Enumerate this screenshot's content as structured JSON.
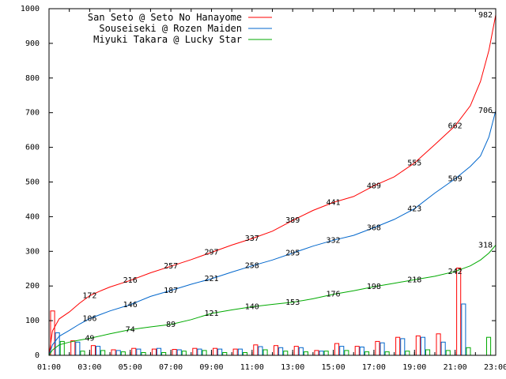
{
  "chart_data": {
    "type": "line",
    "xlim": [
      "01:00",
      "23:00"
    ],
    "ylim": [
      0,
      1000
    ],
    "x_ticks": [
      "01:00",
      "03:00",
      "05:00",
      "07:00",
      "09:00",
      "11:00",
      "13:00",
      "15:00",
      "17:00",
      "19:00",
      "21:00",
      "23:00"
    ],
    "y_ticks": [
      "0",
      "100",
      "200",
      "300",
      "400",
      "500",
      "600",
      "700",
      "800",
      "900",
      "1000"
    ],
    "grid": false,
    "legend_position": "top-left",
    "series": [
      {
        "name": "San Seto @ Seto No Hanayome",
        "color": "#ff0000",
        "points": [
          [
            "01:00",
            0
          ],
          [
            "01:10",
            70
          ],
          [
            "01:30",
            105
          ],
          [
            "02:00",
            125
          ],
          [
            "02:30",
            150
          ],
          [
            "03:00",
            172
          ],
          [
            "03:30",
            185
          ],
          [
            "04:00",
            197
          ],
          [
            "05:00",
            216
          ],
          [
            "06:00",
            238
          ],
          [
            "07:00",
            257
          ],
          [
            "08:00",
            276
          ],
          [
            "09:00",
            297
          ],
          [
            "10:00",
            318
          ],
          [
            "11:00",
            337
          ],
          [
            "12:00",
            358
          ],
          [
            "13:00",
            389
          ],
          [
            "14:00",
            418
          ],
          [
            "15:00",
            441
          ],
          [
            "16:00",
            458
          ],
          [
            "17:00",
            489
          ],
          [
            "18:00",
            515
          ],
          [
            "19:00",
            555
          ],
          [
            "20:00",
            608
          ],
          [
            "21:00",
            662
          ],
          [
            "21:45",
            720
          ],
          [
            "22:15",
            790
          ],
          [
            "22:40",
            880
          ],
          [
            "23:00",
            982
          ]
        ],
        "labels": [
          [
            "03:00",
            "172"
          ],
          [
            "05:00",
            "216"
          ],
          [
            "07:00",
            "257"
          ],
          [
            "09:00",
            "297"
          ],
          [
            "11:00",
            "337"
          ],
          [
            "13:00",
            "389"
          ],
          [
            "15:00",
            "441"
          ],
          [
            "17:00",
            "489"
          ],
          [
            "19:00",
            "555"
          ],
          [
            "21:00",
            "662"
          ],
          [
            "23:00",
            "982"
          ]
        ]
      },
      {
        "name": "Souseiseki @ Rozen Maiden",
        "color": "#0066cc",
        "points": [
          [
            "01:00",
            0
          ],
          [
            "01:10",
            30
          ],
          [
            "01:30",
            55
          ],
          [
            "02:00",
            72
          ],
          [
            "02:30",
            90
          ],
          [
            "03:00",
            106
          ],
          [
            "04:00",
            128
          ],
          [
            "05:00",
            146
          ],
          [
            "06:00",
            170
          ],
          [
            "07:00",
            187
          ],
          [
            "08:00",
            205
          ],
          [
            "09:00",
            221
          ],
          [
            "10:00",
            240
          ],
          [
            "11:00",
            258
          ],
          [
            "12:00",
            275
          ],
          [
            "13:00",
            295
          ],
          [
            "14:00",
            315
          ],
          [
            "15:00",
            332
          ],
          [
            "16:00",
            346
          ],
          [
            "17:00",
            368
          ],
          [
            "18:00",
            392
          ],
          [
            "19:00",
            423
          ],
          [
            "20:00",
            468
          ],
          [
            "21:00",
            509
          ],
          [
            "21:45",
            545
          ],
          [
            "22:15",
            575
          ],
          [
            "22:40",
            630
          ],
          [
            "23:00",
            706
          ]
        ],
        "labels": [
          [
            "03:00",
            "106"
          ],
          [
            "05:00",
            "146"
          ],
          [
            "07:00",
            "187"
          ],
          [
            "09:00",
            "221"
          ],
          [
            "11:00",
            "258"
          ],
          [
            "13:00",
            "295"
          ],
          [
            "15:00",
            "332"
          ],
          [
            "17:00",
            "368"
          ],
          [
            "19:00",
            "423"
          ],
          [
            "21:00",
            "509"
          ],
          [
            "23:00",
            "706"
          ]
        ]
      },
      {
        "name": "Miyuki Takara @ Lucky Star",
        "color": "#00aa00",
        "points": [
          [
            "01:00",
            0
          ],
          [
            "01:10",
            15
          ],
          [
            "01:30",
            30
          ],
          [
            "02:00",
            38
          ],
          [
            "02:30",
            44
          ],
          [
            "03:00",
            49
          ],
          [
            "04:00",
            62
          ],
          [
            "05:00",
            74
          ],
          [
            "06:00",
            82
          ],
          [
            "07:00",
            89
          ],
          [
            "08:00",
            103
          ],
          [
            "09:00",
            121
          ],
          [
            "10:00",
            131
          ],
          [
            "11:00",
            140
          ],
          [
            "12:00",
            147
          ],
          [
            "13:00",
            153
          ],
          [
            "14:00",
            163
          ],
          [
            "15:00",
            176
          ],
          [
            "16:00",
            186
          ],
          [
            "17:00",
            198
          ],
          [
            "18:00",
            208
          ],
          [
            "19:00",
            218
          ],
          [
            "20:00",
            228
          ],
          [
            "21:00",
            242
          ],
          [
            "21:45",
            258
          ],
          [
            "22:15",
            275
          ],
          [
            "22:40",
            295
          ],
          [
            "23:00",
            318
          ]
        ],
        "labels": [
          [
            "03:00",
            "49"
          ],
          [
            "05:00",
            "74"
          ],
          [
            "07:00",
            "89"
          ],
          [
            "09:00",
            "121"
          ],
          [
            "11:00",
            "140"
          ],
          [
            "13:00",
            "153"
          ],
          [
            "15:00",
            "176"
          ],
          [
            "17:00",
            "198"
          ],
          [
            "19:00",
            "218"
          ],
          [
            "21:00",
            "242"
          ],
          [
            "23:00",
            "318"
          ]
        ]
      }
    ],
    "hourly_bars": {
      "hours": [
        "01:00",
        "02:00",
        "03:00",
        "04:00",
        "05:00",
        "06:00",
        "07:00",
        "08:00",
        "09:00",
        "10:00",
        "11:00",
        "12:00",
        "13:00",
        "14:00",
        "15:00",
        "16:00",
        "17:00",
        "18:00",
        "19:00",
        "20:00",
        "21:00",
        "22:00"
      ],
      "series": [
        {
          "name": "San Seto @ Seto No Hanayome",
          "color": "#ff0000",
          "values": [
            128,
            42,
            28,
            16,
            20,
            18,
            17,
            20,
            20,
            18,
            30,
            28,
            26,
            14,
            34,
            26,
            40,
            52,
            56,
            62,
            252,
            0
          ]
        },
        {
          "name": "Souseiseki @ Rozen Maiden",
          "color": "#0066cc",
          "values": [
            65,
            38,
            26,
            14,
            18,
            20,
            16,
            18,
            18,
            18,
            25,
            22,
            22,
            12,
            26,
            24,
            36,
            48,
            52,
            38,
            148,
            0
          ]
        },
        {
          "name": "Miyuki Takara @ Lucky Star",
          "color": "#00aa00",
          "values": [
            40,
            12,
            14,
            10,
            8,
            8,
            12,
            14,
            8,
            8,
            16,
            12,
            10,
            12,
            14,
            10,
            10,
            12,
            16,
            14,
            22,
            52
          ]
        }
      ]
    }
  }
}
